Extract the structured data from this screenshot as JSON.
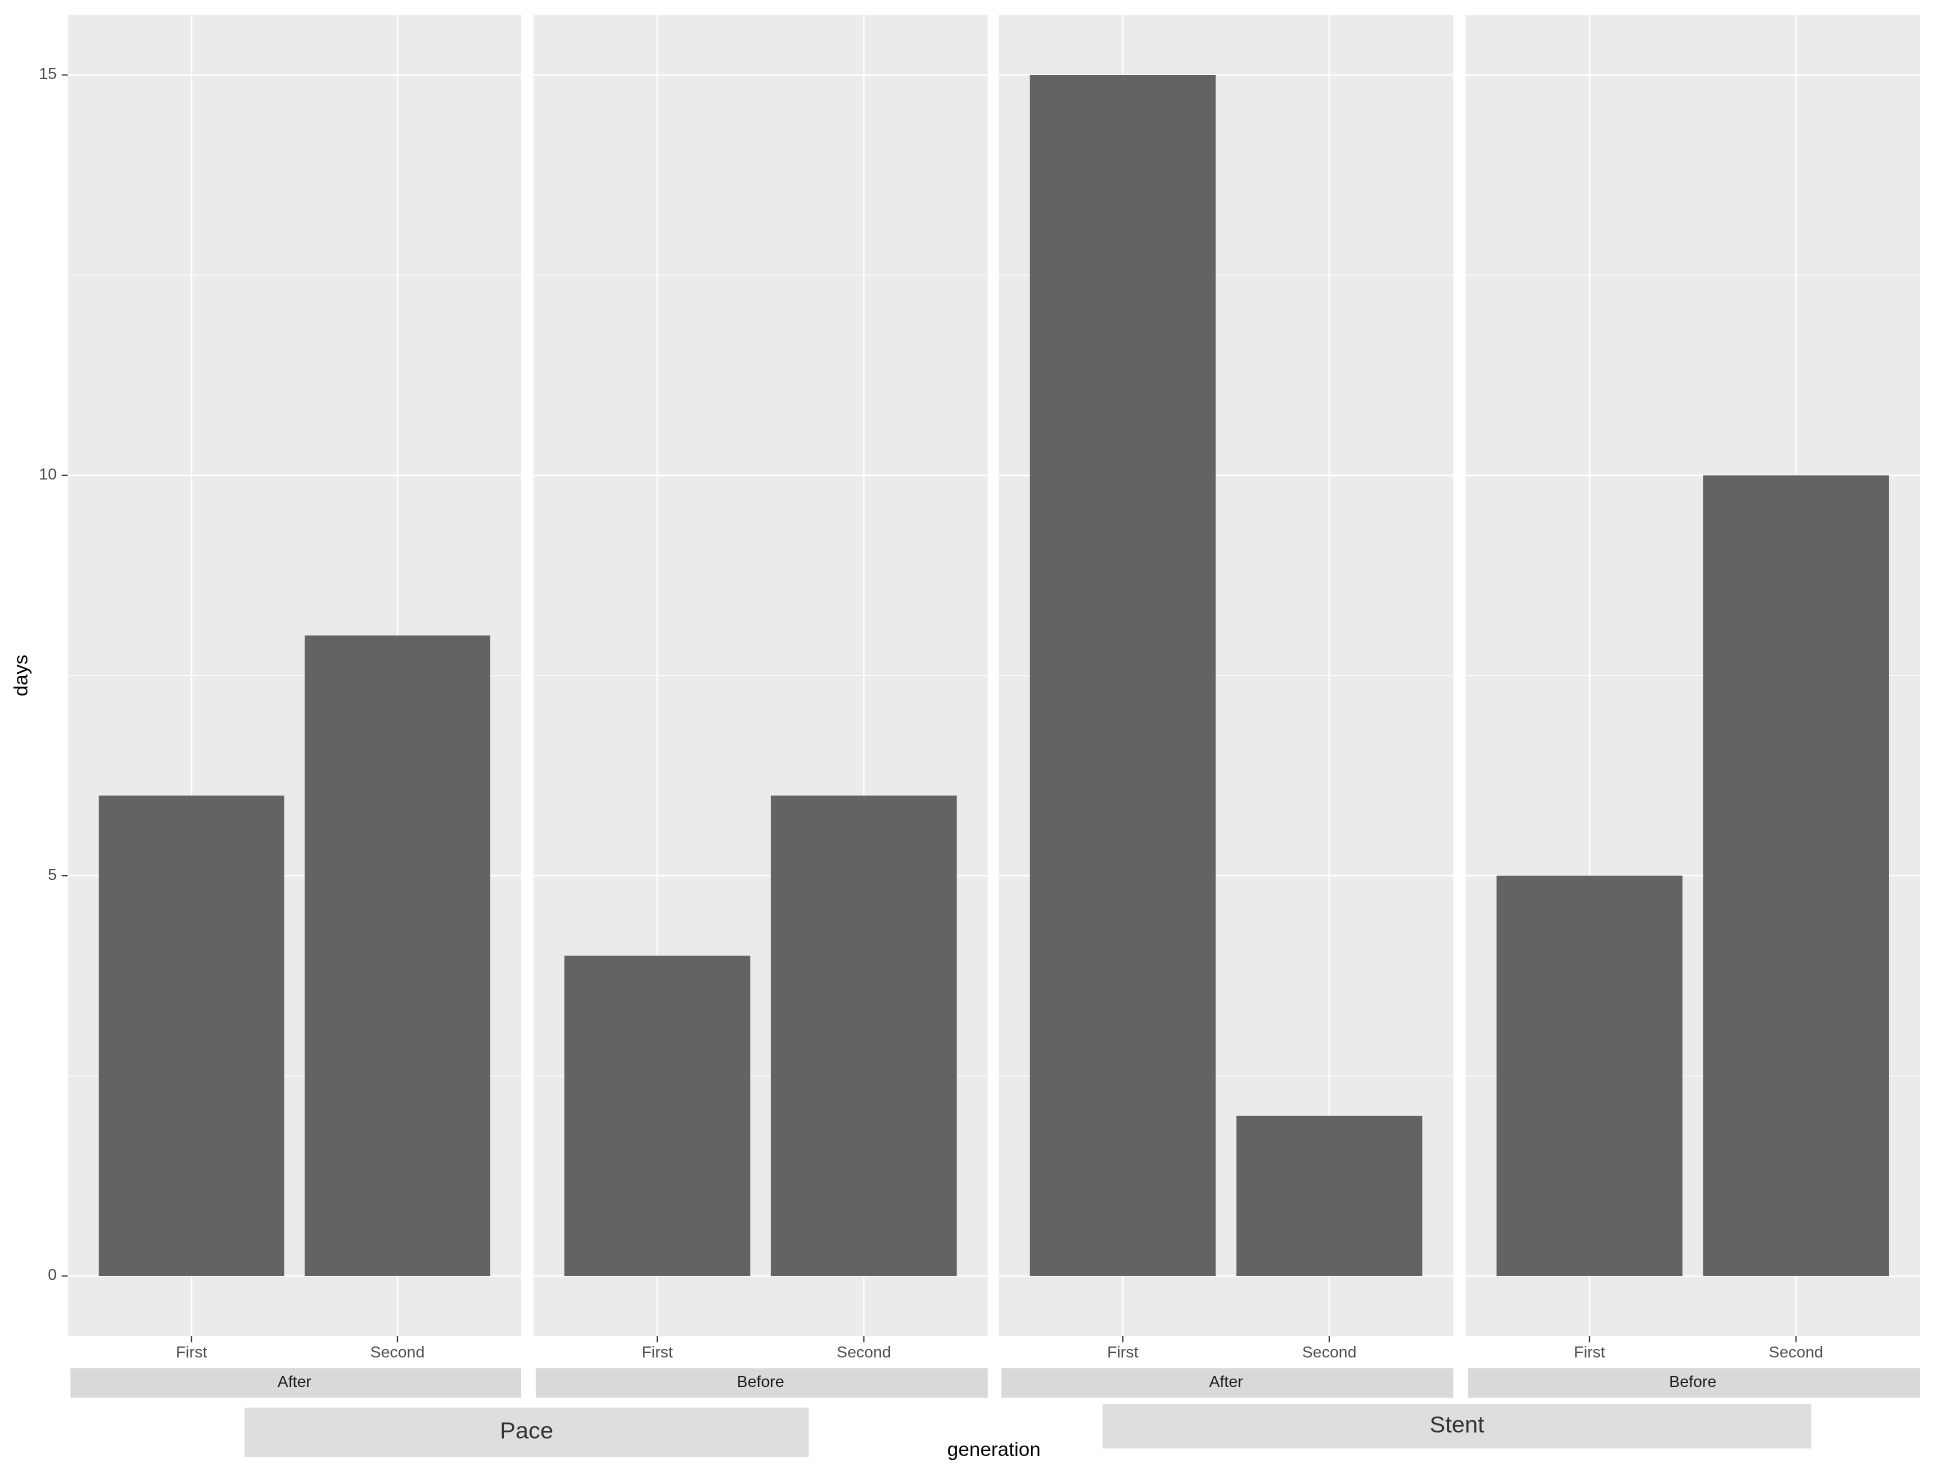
{
  "chart_data": {
    "type": "bar",
    "y_label": "days",
    "x_label": "generation",
    "ylim": [
      -0.75,
      15.75
    ],
    "yticks": [
      0,
      5,
      10,
      15
    ],
    "grid": true,
    "color": "#636363",
    "groups": [
      {
        "name": "Pace",
        "panels": [
          {
            "name": "After",
            "categories": [
              "First",
              "Second"
            ],
            "values": [
              6,
              8
            ]
          },
          {
            "name": "Before",
            "categories": [
              "First",
              "Second"
            ],
            "values": [
              4,
              6
            ]
          }
        ]
      },
      {
        "name": "Stent",
        "panels": [
          {
            "name": "After",
            "categories": [
              "First",
              "Second"
            ],
            "values": [
              15,
              2
            ]
          },
          {
            "name": "Before",
            "categories": [
              "First",
              "Second"
            ],
            "values": [
              5,
              10
            ]
          }
        ]
      }
    ]
  }
}
